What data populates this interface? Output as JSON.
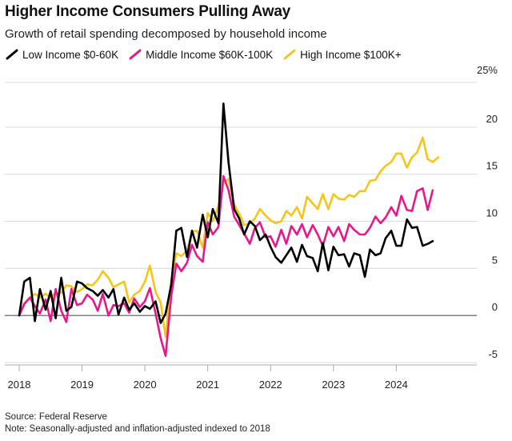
{
  "title": "Higher Income Consumers Pulling Away",
  "subtitle": "Growth of retail spending decomposed by household income",
  "footer": {
    "source": "Source: Federal Reserve",
    "note": "Note: Seasonally-adjusted and inflation-adjusted indexed to 2018"
  },
  "colors": {
    "low": "#000000",
    "middle": "#e8178a",
    "high": "#f5c518",
    "axis": "#aaaaaa",
    "grid": "#d9d9d9"
  },
  "chart_data": {
    "type": "line",
    "title": "Higher Income Consumers Pulling Away",
    "subtitle": "Growth of retail spending decomposed by household income",
    "xlabel": "",
    "ylabel": "",
    "xlim": [
      2018.0,
      2024.95
    ],
    "ylim": [
      -5,
      25
    ],
    "y_unit_label": "25%",
    "y_ticks": [
      "25%",
      "20",
      "15",
      "10",
      "5",
      "0",
      "-5"
    ],
    "y_tick_values": [
      25,
      20,
      15,
      10,
      5,
      0,
      -5
    ],
    "x_ticks": [
      "2018",
      "2019",
      "2020",
      "2021",
      "2022",
      "2023",
      "2024"
    ],
    "x_tick_values": [
      2018,
      2019,
      2020,
      2021,
      2022,
      2023,
      2024
    ],
    "grid": true,
    "legend_position": "top-left",
    "series": [
      {
        "name": "Low Income $0-60K",
        "color": "#000000",
        "points": [
          [
            2018.0,
            0
          ],
          [
            2018.08,
            3.6
          ],
          [
            2018.17,
            4
          ],
          [
            2018.25,
            -0.6
          ],
          [
            2018.33,
            2.8
          ],
          [
            2018.42,
            0.6
          ],
          [
            2018.5,
            2.6
          ],
          [
            2018.58,
            -0.3
          ],
          [
            2018.67,
            4
          ],
          [
            2018.75,
            0.5
          ],
          [
            2018.83,
            0.9
          ],
          [
            2018.92,
            3.6
          ],
          [
            2019.0,
            3.4
          ],
          [
            2019.08,
            2.9
          ],
          [
            2019.17,
            2.6
          ],
          [
            2019.25,
            2.1
          ],
          [
            2019.33,
            2.7
          ],
          [
            2019.42,
            1.9
          ],
          [
            2019.5,
            2.8
          ],
          [
            2019.58,
            0.1
          ],
          [
            2019.67,
            1.9
          ],
          [
            2019.75,
            0.6
          ],
          [
            2019.83,
            1.3
          ],
          [
            2019.92,
            0.4
          ],
          [
            2020.0,
            1
          ],
          [
            2020.08,
            0.7
          ],
          [
            2020.17,
            1.5
          ],
          [
            2020.25,
            -0.8
          ],
          [
            2020.33,
            0.2
          ],
          [
            2020.42,
            3.3
          ],
          [
            2020.5,
            9
          ],
          [
            2020.58,
            9.3
          ],
          [
            2020.67,
            6.2
          ],
          [
            2020.75,
            9
          ],
          [
            2020.83,
            7.2
          ],
          [
            2020.92,
            10.7
          ],
          [
            2021.0,
            8.3
          ],
          [
            2021.08,
            11.3
          ],
          [
            2021.17,
            9.8
          ],
          [
            2021.25,
            22.5
          ],
          [
            2021.33,
            16.3
          ],
          [
            2021.42,
            11.3
          ],
          [
            2021.5,
            10.3
          ],
          [
            2021.58,
            8.6
          ],
          [
            2021.67,
            10
          ],
          [
            2021.75,
            9.5
          ],
          [
            2021.83,
            8
          ],
          [
            2021.92,
            8.6
          ],
          [
            2022.0,
            7.3
          ],
          [
            2022.08,
            6.2
          ],
          [
            2022.17,
            5.6
          ],
          [
            2022.25,
            6.4
          ],
          [
            2022.33,
            7.2
          ],
          [
            2022.42,
            5.7
          ],
          [
            2022.5,
            7.5
          ],
          [
            2022.58,
            6.3
          ],
          [
            2022.67,
            6.1
          ],
          [
            2022.75,
            4.7
          ],
          [
            2022.83,
            7.7
          ],
          [
            2022.92,
            4.8
          ],
          [
            2023.0,
            7.3
          ],
          [
            2023.08,
            6.4
          ],
          [
            2023.17,
            6.5
          ],
          [
            2023.25,
            5.2
          ],
          [
            2023.33,
            6.6
          ],
          [
            2023.42,
            6.4
          ],
          [
            2023.5,
            4.1
          ],
          [
            2023.58,
            7
          ],
          [
            2023.67,
            6.4
          ],
          [
            2023.75,
            6.6
          ],
          [
            2023.83,
            8.2
          ],
          [
            2023.92,
            9
          ],
          [
            2024.0,
            7.4
          ],
          [
            2024.08,
            7.4
          ],
          [
            2024.17,
            10.2
          ],
          [
            2024.25,
            9.3
          ],
          [
            2024.33,
            9.4
          ],
          [
            2024.42,
            7.4
          ],
          [
            2024.5,
            7.6
          ],
          [
            2024.58,
            7.9
          ]
        ]
      },
      {
        "name": "Middle Income $60K-100K",
        "color": "#e8178a",
        "points": [
          [
            2018.0,
            0
          ],
          [
            2018.08,
            1.2
          ],
          [
            2018.17,
            1.9
          ],
          [
            2018.25,
            1
          ],
          [
            2018.33,
            0.2
          ],
          [
            2018.42,
            1.7
          ],
          [
            2018.5,
            -0.6
          ],
          [
            2018.58,
            2.8
          ],
          [
            2018.67,
            0.5
          ],
          [
            2018.75,
            -0.7
          ],
          [
            2018.83,
            2.8
          ],
          [
            2018.92,
            1.1
          ],
          [
            2019.0,
            1.3
          ],
          [
            2019.08,
            2.2
          ],
          [
            2019.17,
            1.7
          ],
          [
            2019.25,
            0.5
          ],
          [
            2019.33,
            2.3
          ],
          [
            2019.42,
            0
          ],
          [
            2019.5,
            1.1
          ],
          [
            2019.58,
            1
          ],
          [
            2019.67,
            1.3
          ],
          [
            2019.75,
            0.3
          ],
          [
            2019.83,
            1.8
          ],
          [
            2019.92,
            0.9
          ],
          [
            2020.0,
            1.5
          ],
          [
            2020.08,
            2.9
          ],
          [
            2020.17,
            0.2
          ],
          [
            2020.25,
            -2.4
          ],
          [
            2020.33,
            -4.3
          ],
          [
            2020.42,
            2.1
          ],
          [
            2020.5,
            5.5
          ],
          [
            2020.58,
            4.7
          ],
          [
            2020.67,
            5.6
          ],
          [
            2020.75,
            7.5
          ],
          [
            2020.83,
            6.3
          ],
          [
            2020.92,
            5.7
          ],
          [
            2021.0,
            9.9
          ],
          [
            2021.08,
            8.6
          ],
          [
            2021.17,
            9.4
          ],
          [
            2021.25,
            14.8
          ],
          [
            2021.33,
            13.3
          ],
          [
            2021.42,
            10.5
          ],
          [
            2021.5,
            9.6
          ],
          [
            2021.58,
            8.7
          ],
          [
            2021.67,
            7.6
          ],
          [
            2021.75,
            9.3
          ],
          [
            2021.83,
            9.9
          ],
          [
            2021.92,
            8.3
          ],
          [
            2022.0,
            8.4
          ],
          [
            2022.08,
            7.3
          ],
          [
            2022.17,
            9.1
          ],
          [
            2022.25,
            7.6
          ],
          [
            2022.33,
            9.5
          ],
          [
            2022.42,
            8.6
          ],
          [
            2022.5,
            9.7
          ],
          [
            2022.58,
            8.3
          ],
          [
            2022.67,
            9.6
          ],
          [
            2022.75,
            8.6
          ],
          [
            2022.83,
            7.4
          ],
          [
            2022.92,
            9.4
          ],
          [
            2023.0,
            8.4
          ],
          [
            2023.08,
            9.4
          ],
          [
            2023.17,
            7.9
          ],
          [
            2023.25,
            9.7
          ],
          [
            2023.33,
            9.1
          ],
          [
            2023.42,
            8.6
          ],
          [
            2023.5,
            8.6
          ],
          [
            2023.58,
            9.3
          ],
          [
            2023.67,
            10.5
          ],
          [
            2023.75,
            9.8
          ],
          [
            2023.83,
            10.4
          ],
          [
            2023.92,
            11.5
          ],
          [
            2024.0,
            10.6
          ],
          [
            2024.08,
            12.7
          ],
          [
            2024.17,
            11.2
          ],
          [
            2024.25,
            11.1
          ],
          [
            2024.33,
            13.2
          ],
          [
            2024.42,
            13.5
          ],
          [
            2024.5,
            11.2
          ],
          [
            2024.58,
            13.3
          ]
        ]
      },
      {
        "name": "High Income $100K+",
        "color": "#f5c518",
        "points": [
          [
            2018.0,
            0
          ],
          [
            2018.08,
            1.3
          ],
          [
            2018.17,
            1.9
          ],
          [
            2018.25,
            2.3
          ],
          [
            2018.33,
            1.9
          ],
          [
            2018.42,
            2.3
          ],
          [
            2018.5,
            1.9
          ],
          [
            2018.58,
            2.4
          ],
          [
            2018.67,
            2.4
          ],
          [
            2018.75,
            3.2
          ],
          [
            2018.83,
            3.1
          ],
          [
            2018.92,
            2.5
          ],
          [
            2019.0,
            2.8
          ],
          [
            2019.08,
            3.3
          ],
          [
            2019.17,
            3.2
          ],
          [
            2019.25,
            3.8
          ],
          [
            2019.33,
            4.7
          ],
          [
            2019.42,
            4
          ],
          [
            2019.5,
            3
          ],
          [
            2019.58,
            3.3
          ],
          [
            2019.67,
            3.6
          ],
          [
            2019.75,
            1.4
          ],
          [
            2019.83,
            2.2
          ],
          [
            2019.92,
            2.6
          ],
          [
            2020.0,
            3.6
          ],
          [
            2020.08,
            5.3
          ],
          [
            2020.17,
            2.5
          ],
          [
            2020.25,
            1.4
          ],
          [
            2020.33,
            -2.3
          ],
          [
            2020.42,
            3.8
          ],
          [
            2020.5,
            6.6
          ],
          [
            2020.58,
            6.3
          ],
          [
            2020.67,
            6.9
          ],
          [
            2020.75,
            8.9
          ],
          [
            2020.83,
            9
          ],
          [
            2020.92,
            7.2
          ],
          [
            2021.0,
            10.9
          ],
          [
            2021.08,
            10
          ],
          [
            2021.17,
            11.6
          ],
          [
            2021.25,
            14
          ],
          [
            2021.33,
            14.5
          ],
          [
            2021.42,
            11.8
          ],
          [
            2021.5,
            10.8
          ],
          [
            2021.58,
            9.6
          ],
          [
            2021.67,
            9.8
          ],
          [
            2021.75,
            10.3
          ],
          [
            2021.83,
            11.3
          ],
          [
            2021.92,
            10.6
          ],
          [
            2022.0,
            10.1
          ],
          [
            2022.08,
            9.8
          ],
          [
            2022.17,
            10
          ],
          [
            2022.25,
            11.1
          ],
          [
            2022.33,
            10.6
          ],
          [
            2022.42,
            11.5
          ],
          [
            2022.5,
            10.3
          ],
          [
            2022.58,
            12.6
          ],
          [
            2022.67,
            11.9
          ],
          [
            2022.75,
            11.3
          ],
          [
            2022.83,
            12.9
          ],
          [
            2022.92,
            11.3
          ],
          [
            2023.0,
            12.9
          ],
          [
            2023.08,
            12.4
          ],
          [
            2023.17,
            12.3
          ],
          [
            2023.25,
            12.8
          ],
          [
            2023.33,
            12.6
          ],
          [
            2023.42,
            13.2
          ],
          [
            2023.5,
            13.2
          ],
          [
            2023.58,
            14.3
          ],
          [
            2023.67,
            14.4
          ],
          [
            2023.75,
            15.3
          ],
          [
            2023.83,
            15.9
          ],
          [
            2023.92,
            16.3
          ],
          [
            2024.0,
            17.2
          ],
          [
            2024.08,
            17.2
          ],
          [
            2024.17,
            15.7
          ],
          [
            2024.25,
            16.8
          ],
          [
            2024.33,
            17.3
          ],
          [
            2024.42,
            18.9
          ],
          [
            2024.5,
            16.6
          ],
          [
            2024.58,
            16.3
          ],
          [
            2024.67,
            16.8
          ]
        ]
      }
    ]
  }
}
